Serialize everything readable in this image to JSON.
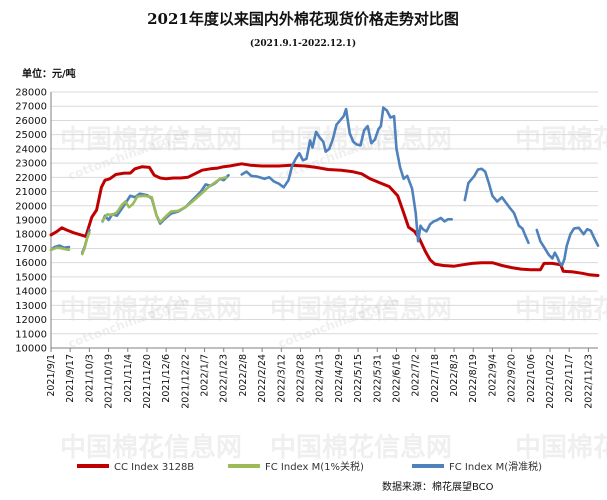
{
  "colors": {
    "cc_index": "#c00000",
    "fc_index_1pct": "#9bbb59",
    "fc_index_sliding": "#4f81bd",
    "grid": "#d9d9d9",
    "axis": "#7f7f7f"
  },
  "watermark": {
    "text": "中国棉花信息网",
    "url": "cottonchina.org.cn"
  },
  "source": "数据来源：棉花展望BCO",
  "chart_data": {
    "type": "line",
    "title": "2021年度以来国内外棉花现货价格走势对比图",
    "subtitle": "(2021.9.1-2022.12.1)",
    "ylabel": "单位：元/吨",
    "ylim": [
      10000,
      28000
    ],
    "ytick_step": 1000,
    "grid": true,
    "legend_position": "bottom",
    "x_start": "2021-09-01",
    "x_end": "2022-12-01",
    "xtick_labels": [
      "2021/9/1",
      "2021/9/17",
      "2021/10/3",
      "2021/10/19",
      "2021/11/4",
      "2021/11/20",
      "2021/12/6",
      "2021/12/22",
      "2022/1/7",
      "2022/1/23",
      "2022/2/8",
      "2022/2/24",
      "2022/3/12",
      "2022/3/28",
      "2022/4/13",
      "2022/4/29",
      "2022/5/15",
      "2022/5/31",
      "2022/6/16",
      "2022/7/2",
      "2022/7/18",
      "2022/8/3",
      "2022/8/19",
      "2022/9/4",
      "2022/9/20",
      "2022/10/6",
      "2022/10/22",
      "2022/11/7",
      "2022/11/23"
    ],
    "series": [
      {
        "name": "CC Index 3128B",
        "color": "#c00000",
        "points": [
          [
            "2021-09-01",
            17950
          ],
          [
            "2021-09-06",
            18200
          ],
          [
            "2021-09-10",
            18450
          ],
          [
            "2021-09-14",
            18300
          ],
          [
            "2021-09-20",
            18100
          ],
          [
            "2021-09-26",
            17950
          ],
          [
            "2021-09-30",
            17850
          ],
          [
            "2021-10-05",
            19200
          ],
          [
            "2021-10-09",
            19700
          ],
          [
            "2021-10-13",
            21300
          ],
          [
            "2021-10-16",
            21800
          ],
          [
            "2021-10-20",
            21900
          ],
          [
            "2021-10-25",
            22200
          ],
          [
            "2021-11-01",
            22300
          ],
          [
            "2021-11-06",
            22300
          ],
          [
            "2021-11-10",
            22600
          ],
          [
            "2021-11-16",
            22750
          ],
          [
            "2021-11-22",
            22700
          ],
          [
            "2021-11-26",
            22150
          ],
          [
            "2021-12-01",
            21950
          ],
          [
            "2021-12-06",
            21900
          ],
          [
            "2021-12-12",
            21950
          ],
          [
            "2021-12-18",
            21950
          ],
          [
            "2021-12-24",
            22000
          ],
          [
            "2021-12-30",
            22250
          ],
          [
            "2022-01-05",
            22500
          ],
          [
            "2022-01-12",
            22600
          ],
          [
            "2022-01-18",
            22650
          ],
          [
            "2022-01-23",
            22750
          ],
          [
            "2022-01-28",
            22800
          ],
          [
            "2022-02-07",
            22950
          ],
          [
            "2022-02-14",
            22850
          ],
          [
            "2022-02-24",
            22800
          ],
          [
            "2022-03-10",
            22800
          ],
          [
            "2022-03-20",
            22850
          ],
          [
            "2022-04-01",
            22800
          ],
          [
            "2022-04-10",
            22700
          ],
          [
            "2022-04-20",
            22550
          ],
          [
            "2022-05-01",
            22500
          ],
          [
            "2022-05-10",
            22400
          ],
          [
            "2022-05-18",
            22250
          ],
          [
            "2022-05-25",
            21900
          ],
          [
            "2022-06-01",
            21650
          ],
          [
            "2022-06-10",
            21350
          ],
          [
            "2022-06-17",
            20700
          ],
          [
            "2022-06-22",
            19500
          ],
          [
            "2022-06-26",
            18500
          ],
          [
            "2022-07-01",
            18200
          ],
          [
            "2022-07-05",
            17700
          ],
          [
            "2022-07-10",
            16800
          ],
          [
            "2022-07-14",
            16200
          ],
          [
            "2022-07-18",
            15900
          ],
          [
            "2022-07-25",
            15800
          ],
          [
            "2022-08-03",
            15750
          ],
          [
            "2022-08-10",
            15850
          ],
          [
            "2022-08-18",
            15950
          ],
          [
            "2022-08-26",
            16000
          ],
          [
            "2022-09-04",
            16000
          ],
          [
            "2022-09-12",
            15800
          ],
          [
            "2022-09-20",
            15650
          ],
          [
            "2022-09-28",
            15550
          ],
          [
            "2022-10-06",
            15500
          ],
          [
            "2022-10-14",
            15500
          ],
          [
            "2022-10-17",
            15950
          ],
          [
            "2022-10-24",
            15950
          ],
          [
            "2022-10-31",
            15850
          ],
          [
            "2022-11-02",
            15400
          ],
          [
            "2022-11-10",
            15350
          ],
          [
            "2022-11-18",
            15250
          ],
          [
            "2022-11-24",
            15150
          ],
          [
            "2022-12-01",
            15100
          ]
        ]
      },
      {
        "name": "FC Index M(1%关税)",
        "color": "#9bbb59",
        "points": [
          [
            "2021-09-01",
            16900
          ],
          [
            "2021-09-06",
            17050
          ],
          [
            "2021-09-10",
            17000
          ],
          [
            "2021-09-13",
            16950
          ],
          [
            "2021-09-16",
            16900
          ],
          null,
          [
            "2021-09-27",
            16600
          ],
          [
            "2021-09-29",
            17000
          ],
          [
            "2021-10-01",
            17700
          ],
          [
            "2021-10-03",
            18100
          ],
          null,
          [
            "2021-10-14",
            18950
          ],
          [
            "2021-10-18",
            19400
          ],
          [
            "2021-10-22",
            19350
          ],
          [
            "2021-10-26",
            19550
          ],
          [
            "2021-10-30",
            20050
          ],
          [
            "2021-11-02",
            20300
          ],
          [
            "2021-11-05",
            19900
          ],
          [
            "2021-11-08",
            20100
          ],
          [
            "2021-11-12",
            20650
          ],
          [
            "2021-11-18",
            20700
          ],
          [
            "2021-11-24",
            20600
          ],
          [
            "2021-11-28",
            19300
          ],
          [
            "2021-12-01",
            18850
          ],
          [
            "2021-12-05",
            19200
          ],
          [
            "2021-12-10",
            19600
          ],
          [
            "2021-12-16",
            19650
          ],
          [
            "2021-12-22",
            19900
          ],
          [
            "2021-12-28",
            20300
          ],
          [
            "2022-01-05",
            20900
          ],
          [
            "2022-01-10",
            21300
          ],
          [
            "2022-01-15",
            21600
          ],
          [
            "2022-01-20",
            21900
          ],
          [
            "2022-01-25",
            22000
          ]
        ]
      },
      {
        "name": "FC Index M(滑准税)",
        "color": "#4f81bd",
        "points": [
          [
            "2021-09-01",
            16900
          ],
          [
            "2021-09-04",
            17100
          ],
          [
            "2021-09-08",
            17200
          ],
          [
            "2021-09-12",
            17050
          ],
          [
            "2021-09-16",
            17100
          ],
          null,
          [
            "2021-09-27",
            16700
          ],
          [
            "2021-09-29",
            17100
          ],
          [
            "2021-10-01",
            17700
          ],
          [
            "2021-10-03",
            18300
          ],
          null,
          [
            "2021-10-14",
            18900
          ],
          [
            "2021-10-16",
            19300
          ],
          [
            "2021-10-19",
            19000
          ],
          [
            "2021-10-22",
            19400
          ],
          [
            "2021-10-26",
            19300
          ],
          [
            "2021-10-30",
            19800
          ],
          [
            "2021-11-03",
            20300
          ],
          [
            "2021-11-06",
            20700
          ],
          [
            "2021-11-10",
            20600
          ],
          [
            "2021-11-14",
            20850
          ],
          [
            "2021-11-20",
            20750
          ],
          [
            "2021-11-24",
            20500
          ],
          [
            "2021-11-28",
            19300
          ],
          [
            "2021-12-01",
            18750
          ],
          [
            "2021-12-05",
            19100
          ],
          [
            "2021-12-10",
            19450
          ],
          [
            "2021-12-16",
            19600
          ],
          [
            "2021-12-22",
            19900
          ],
          [
            "2021-12-28",
            20400
          ],
          [
            "2022-01-04",
            21000
          ],
          [
            "2022-01-08",
            21500
          ],
          [
            "2022-01-12",
            21400
          ],
          [
            "2022-01-16",
            21600
          ],
          [
            "2022-01-20",
            21900
          ],
          [
            "2022-01-23",
            21800
          ],
          [
            "2022-01-27",
            22150
          ],
          null,
          [
            "2022-02-07",
            22200
          ],
          [
            "2022-02-11",
            22400
          ],
          [
            "2022-02-15",
            22100
          ],
          [
            "2022-02-20",
            22050
          ],
          [
            "2022-02-26",
            21900
          ],
          [
            "2022-03-02",
            22000
          ],
          [
            "2022-03-06",
            21700
          ],
          [
            "2022-03-10",
            21550
          ],
          [
            "2022-03-14",
            21300
          ],
          [
            "2022-03-18",
            21800
          ],
          [
            "2022-03-21",
            22800
          ],
          [
            "2022-03-24",
            23300
          ],
          [
            "2022-03-27",
            23700
          ],
          [
            "2022-03-30",
            23200
          ],
          [
            "2022-04-02",
            23300
          ],
          [
            "2022-04-05",
            24600
          ],
          [
            "2022-04-07",
            24100
          ],
          [
            "2022-04-10",
            25200
          ],
          [
            "2022-04-13",
            24800
          ],
          [
            "2022-04-16",
            24500
          ],
          [
            "2022-04-18",
            23800
          ],
          [
            "2022-04-21",
            24000
          ],
          [
            "2022-04-24",
            24700
          ],
          [
            "2022-04-27",
            25700
          ],
          [
            "2022-04-30",
            26000
          ],
          [
            "2022-05-03",
            26300
          ],
          [
            "2022-05-05",
            26800
          ],
          [
            "2022-05-08",
            25100
          ],
          [
            "2022-05-11",
            24500
          ],
          [
            "2022-05-14",
            24300
          ],
          [
            "2022-05-17",
            24250
          ],
          [
            "2022-05-20",
            25300
          ],
          [
            "2022-05-23",
            25600
          ],
          [
            "2022-05-26",
            24400
          ],
          [
            "2022-05-29",
            24650
          ],
          [
            "2022-06-01",
            25400
          ],
          [
            "2022-06-03",
            25600
          ],
          [
            "2022-06-05",
            26900
          ],
          [
            "2022-06-08",
            26700
          ],
          [
            "2022-06-11",
            26200
          ],
          [
            "2022-06-14",
            26300
          ],
          [
            "2022-06-16",
            24000
          ],
          [
            "2022-06-19",
            22700
          ],
          [
            "2022-06-22",
            21900
          ],
          [
            "2022-06-25",
            22100
          ],
          [
            "2022-06-29",
            21200
          ],
          [
            "2022-07-02",
            19500
          ],
          [
            "2022-07-04",
            17500
          ],
          [
            "2022-07-06",
            18600
          ],
          [
            "2022-07-08",
            18350
          ],
          [
            "2022-07-11",
            18200
          ],
          [
            "2022-07-14",
            18700
          ],
          [
            "2022-07-17",
            18900
          ],
          [
            "2022-07-20",
            19000
          ],
          [
            "2022-07-23",
            19150
          ],
          [
            "2022-07-26",
            18900
          ],
          [
            "2022-07-29",
            19050
          ],
          [
            "2022-08-01",
            19050
          ],
          null,
          [
            "2022-08-12",
            20400
          ],
          [
            "2022-08-15",
            21600
          ],
          [
            "2022-08-17",
            21800
          ],
          [
            "2022-08-20",
            22100
          ],
          [
            "2022-08-23",
            22550
          ],
          [
            "2022-08-26",
            22600
          ],
          [
            "2022-08-29",
            22400
          ],
          [
            "2022-09-01",
            21600
          ],
          [
            "2022-09-04",
            20700
          ],
          [
            "2022-09-08",
            20300
          ],
          [
            "2022-09-12",
            20600
          ],
          [
            "2022-09-15",
            20250
          ],
          [
            "2022-09-19",
            19800
          ],
          [
            "2022-09-22",
            19500
          ],
          [
            "2022-09-26",
            18600
          ],
          [
            "2022-09-29",
            18400
          ],
          [
            "2022-10-02",
            17800
          ],
          [
            "2022-10-04",
            17400
          ],
          null,
          [
            "2022-10-11",
            18300
          ],
          [
            "2022-10-14",
            17500
          ],
          [
            "2022-10-17",
            17100
          ],
          [
            "2022-10-21",
            16550
          ],
          [
            "2022-10-24",
            16300
          ],
          [
            "2022-10-26",
            16700
          ],
          [
            "2022-10-28",
            16400
          ],
          [
            "2022-10-30",
            16000
          ],
          [
            "2022-11-01",
            15800
          ],
          [
            "2022-11-03",
            16250
          ],
          [
            "2022-11-05",
            17200
          ],
          [
            "2022-11-08",
            18000
          ],
          [
            "2022-11-11",
            18400
          ],
          [
            "2022-11-15",
            18450
          ],
          [
            "2022-11-19",
            18000
          ],
          [
            "2022-11-22",
            18350
          ],
          [
            "2022-11-25",
            18250
          ],
          [
            "2022-11-28",
            17700
          ],
          [
            "2022-12-01",
            17200
          ]
        ]
      }
    ]
  }
}
